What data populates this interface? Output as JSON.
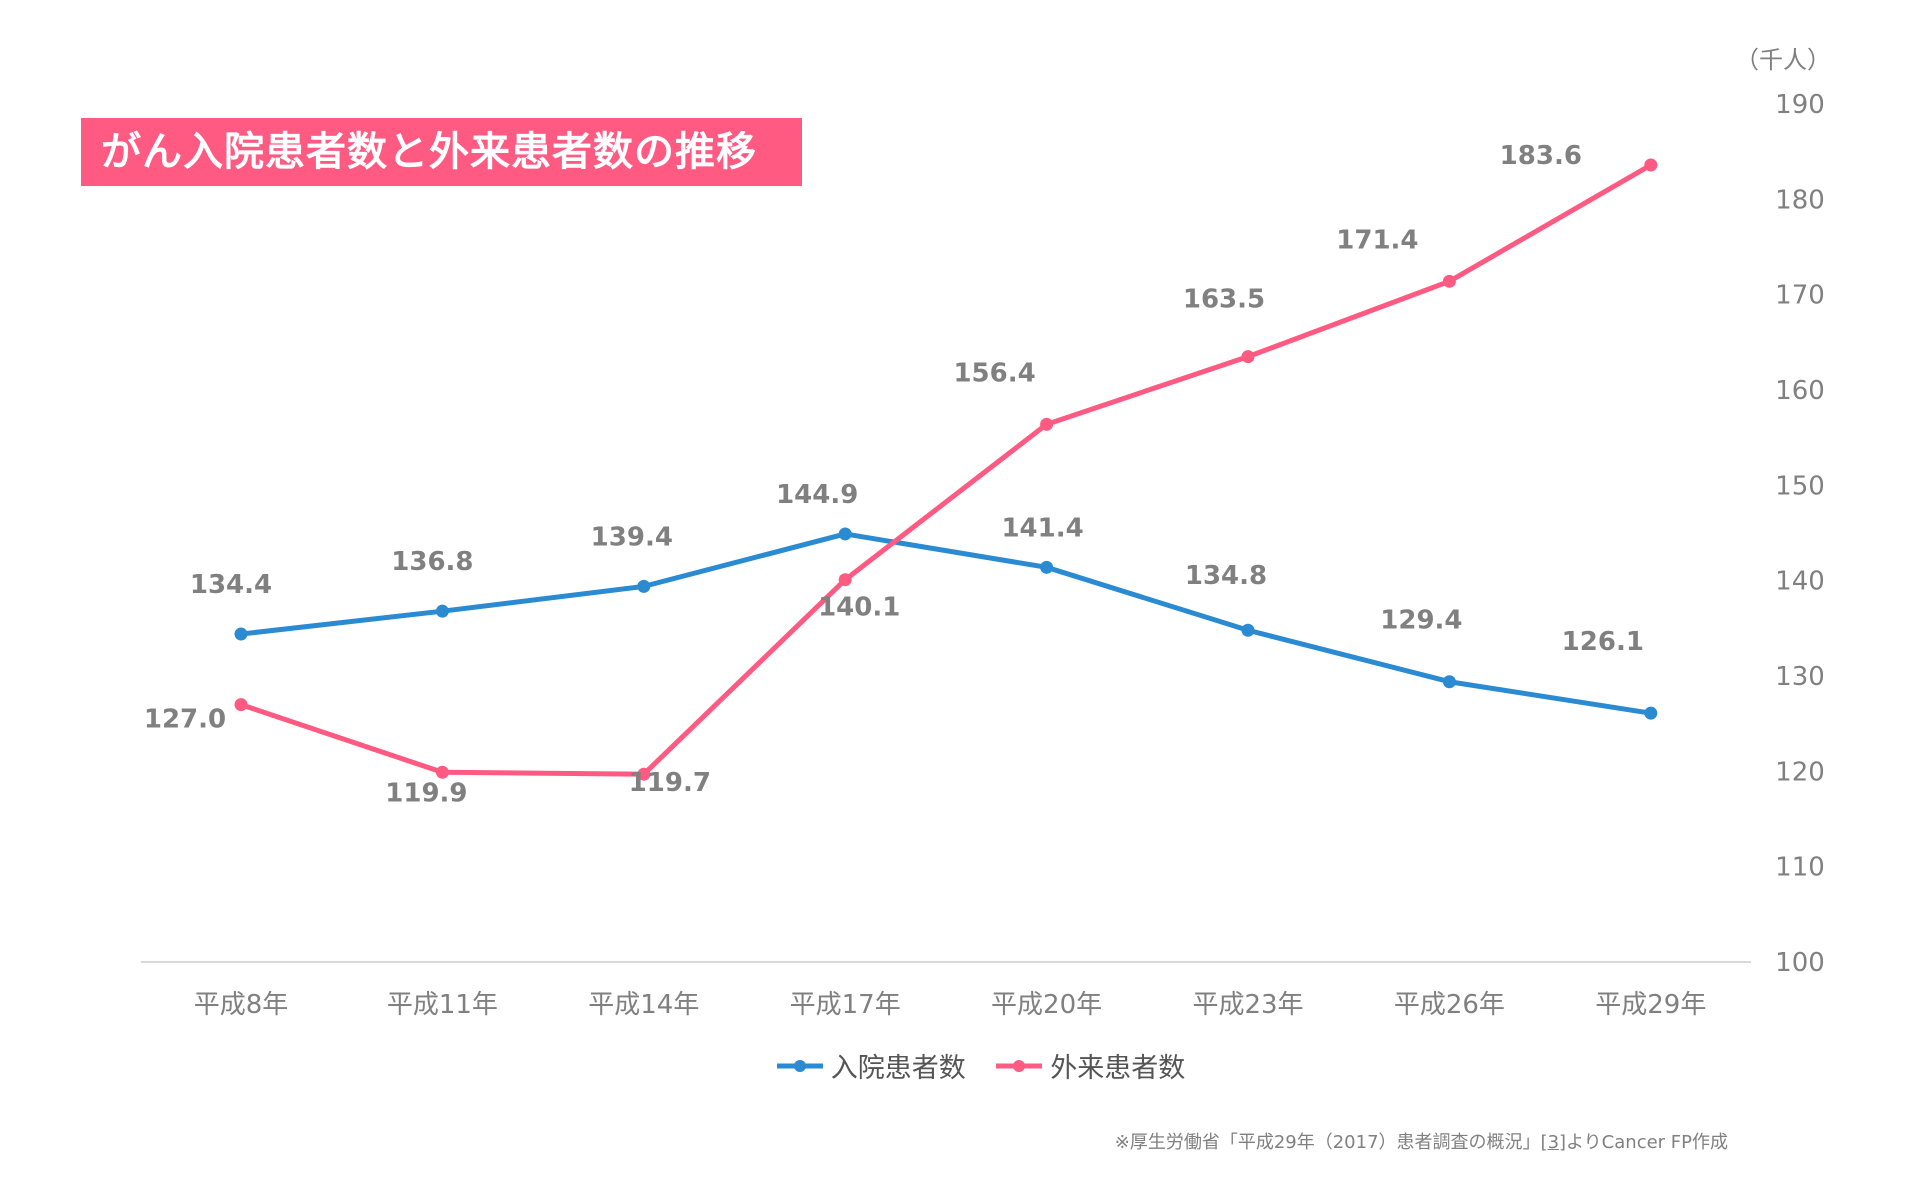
{
  "chart_data": {
    "type": "line",
    "title": "がん入院患者数と外来患者数の推移",
    "unit_label": "（千人）",
    "categories": [
      "平成8年",
      "平成11年",
      "平成14年",
      "平成17年",
      "平成20年",
      "平成23年",
      "平成26年",
      "平成29年"
    ],
    "series": [
      {
        "name": "入院患者数",
        "color": "#2a8ad2",
        "values": [
          134.4,
          136.8,
          139.4,
          144.9,
          141.4,
          134.8,
          129.4,
          126.1
        ]
      },
      {
        "name": "外来患者数",
        "color": "#ff5a82",
        "values": [
          127.0,
          119.9,
          119.7,
          140.1,
          156.4,
          163.5,
          171.4,
          183.6
        ]
      }
    ],
    "ylim": [
      100,
      190
    ],
    "yticks": [
      100,
      110,
      120,
      130,
      140,
      150,
      160,
      170,
      180,
      190
    ],
    "y_axis_side": "right",
    "grid": false,
    "legend_position": "bottom",
    "source": {
      "text": "※厚生労働省「平成29年（2017）患者調査の概況」",
      "ref": "[3]",
      "suffix": "よりCancer FP作成"
    }
  }
}
